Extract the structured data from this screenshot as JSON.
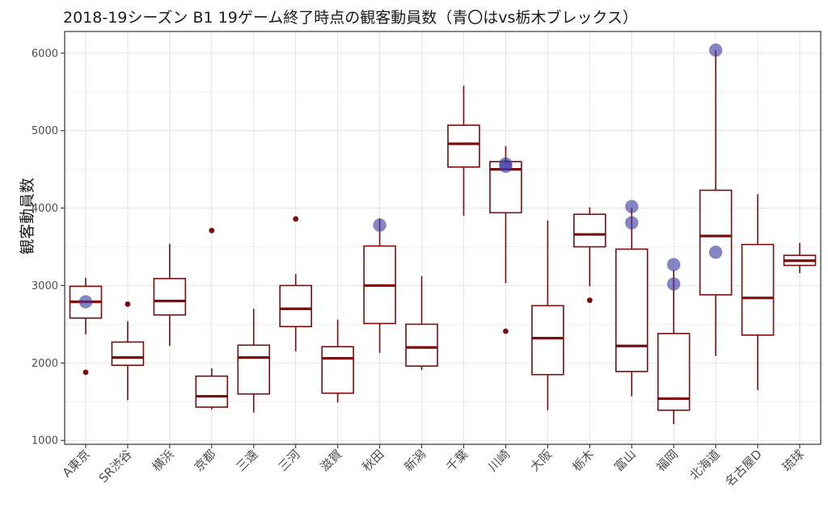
{
  "chart_data": {
    "type": "box",
    "title": "2018-19シーズン B1 19ゲーム終了時点の観客動員数（青〇はvs栃木ブレックス）",
    "xlabel": "",
    "ylabel": "観客動員数",
    "ylim": [
      950,
      6280
    ],
    "yticks": [
      1000,
      2000,
      3000,
      4000,
      5000,
      6000
    ],
    "grid": true,
    "colors": {
      "box": "#7b0c0c",
      "highlight": "#3a3aa0"
    },
    "categories": [
      "A東京",
      "SR渋谷",
      "横浜",
      "京都",
      "三遠",
      "三河",
      "滋賀",
      "秋田",
      "新潟",
      "千葉",
      "川崎",
      "大阪",
      "栃木",
      "富山",
      "福岡",
      "北海道",
      "名古屋D",
      "琉球"
    ],
    "boxes": [
      {
        "min": 2370,
        "q1": 2580,
        "median": 2790,
        "q3": 2990,
        "max": 3100,
        "outliers": [
          1880
        ],
        "highlight": [
          2790
        ]
      },
      {
        "min": 1520,
        "q1": 1970,
        "median": 2070,
        "q3": 2270,
        "max": 2540,
        "outliers": [
          2760
        ],
        "highlight": []
      },
      {
        "min": 2220,
        "q1": 2620,
        "median": 2800,
        "q3": 3090,
        "max": 3540,
        "outliers": [],
        "highlight": []
      },
      {
        "min": 1400,
        "q1": 1430,
        "median": 1570,
        "q3": 1830,
        "max": 1930,
        "outliers": [
          3710
        ],
        "highlight": []
      },
      {
        "min": 1360,
        "q1": 1600,
        "median": 2070,
        "q3": 2230,
        "max": 2700,
        "outliers": [],
        "highlight": []
      },
      {
        "min": 2150,
        "q1": 2470,
        "median": 2700,
        "q3": 3000,
        "max": 3150,
        "outliers": [
          3860
        ],
        "highlight": []
      },
      {
        "min": 1490,
        "q1": 1610,
        "median": 2060,
        "q3": 2210,
        "max": 2560,
        "outliers": [],
        "highlight": []
      },
      {
        "min": 2130,
        "q1": 2510,
        "median": 3000,
        "q3": 3510,
        "max": 3870,
        "outliers": [],
        "highlight": [
          3780
        ]
      },
      {
        "min": 1910,
        "q1": 1960,
        "median": 2200,
        "q3": 2500,
        "max": 3120,
        "outliers": [],
        "highlight": []
      },
      {
        "min": 3900,
        "q1": 4530,
        "median": 4830,
        "q3": 5070,
        "max": 5580,
        "outliers": [],
        "highlight": []
      },
      {
        "min": 3030,
        "q1": 3940,
        "median": 4500,
        "q3": 4600,
        "max": 4800,
        "outliers": [
          2410
        ],
        "highlight": [
          4540,
          4570
        ]
      },
      {
        "min": 1390,
        "q1": 1850,
        "median": 2320,
        "q3": 2740,
        "max": 3840,
        "outliers": [],
        "highlight": []
      },
      {
        "min": 2990,
        "q1": 3500,
        "median": 3660,
        "q3": 3920,
        "max": 4010,
        "outliers": [
          2810
        ],
        "highlight": []
      },
      {
        "min": 1570,
        "q1": 1890,
        "median": 2220,
        "q3": 3470,
        "max": 4000,
        "outliers": [],
        "highlight": [
          4020,
          3810
        ]
      },
      {
        "min": 1210,
        "q1": 1390,
        "median": 1540,
        "q3": 2380,
        "max": 3200,
        "outliers": [],
        "highlight": [
          3270,
          3020
        ]
      },
      {
        "min": 2090,
        "q1": 2880,
        "median": 3640,
        "q3": 4230,
        "max": 6040,
        "outliers": [],
        "highlight": [
          6040,
          3430
        ]
      },
      {
        "min": 1650,
        "q1": 2360,
        "median": 2840,
        "q3": 3530,
        "max": 4180,
        "outliers": [],
        "highlight": []
      },
      {
        "min": 3160,
        "q1": 3260,
        "median": 3320,
        "q3": 3390,
        "max": 3550,
        "outliers": [],
        "highlight": []
      }
    ]
  }
}
